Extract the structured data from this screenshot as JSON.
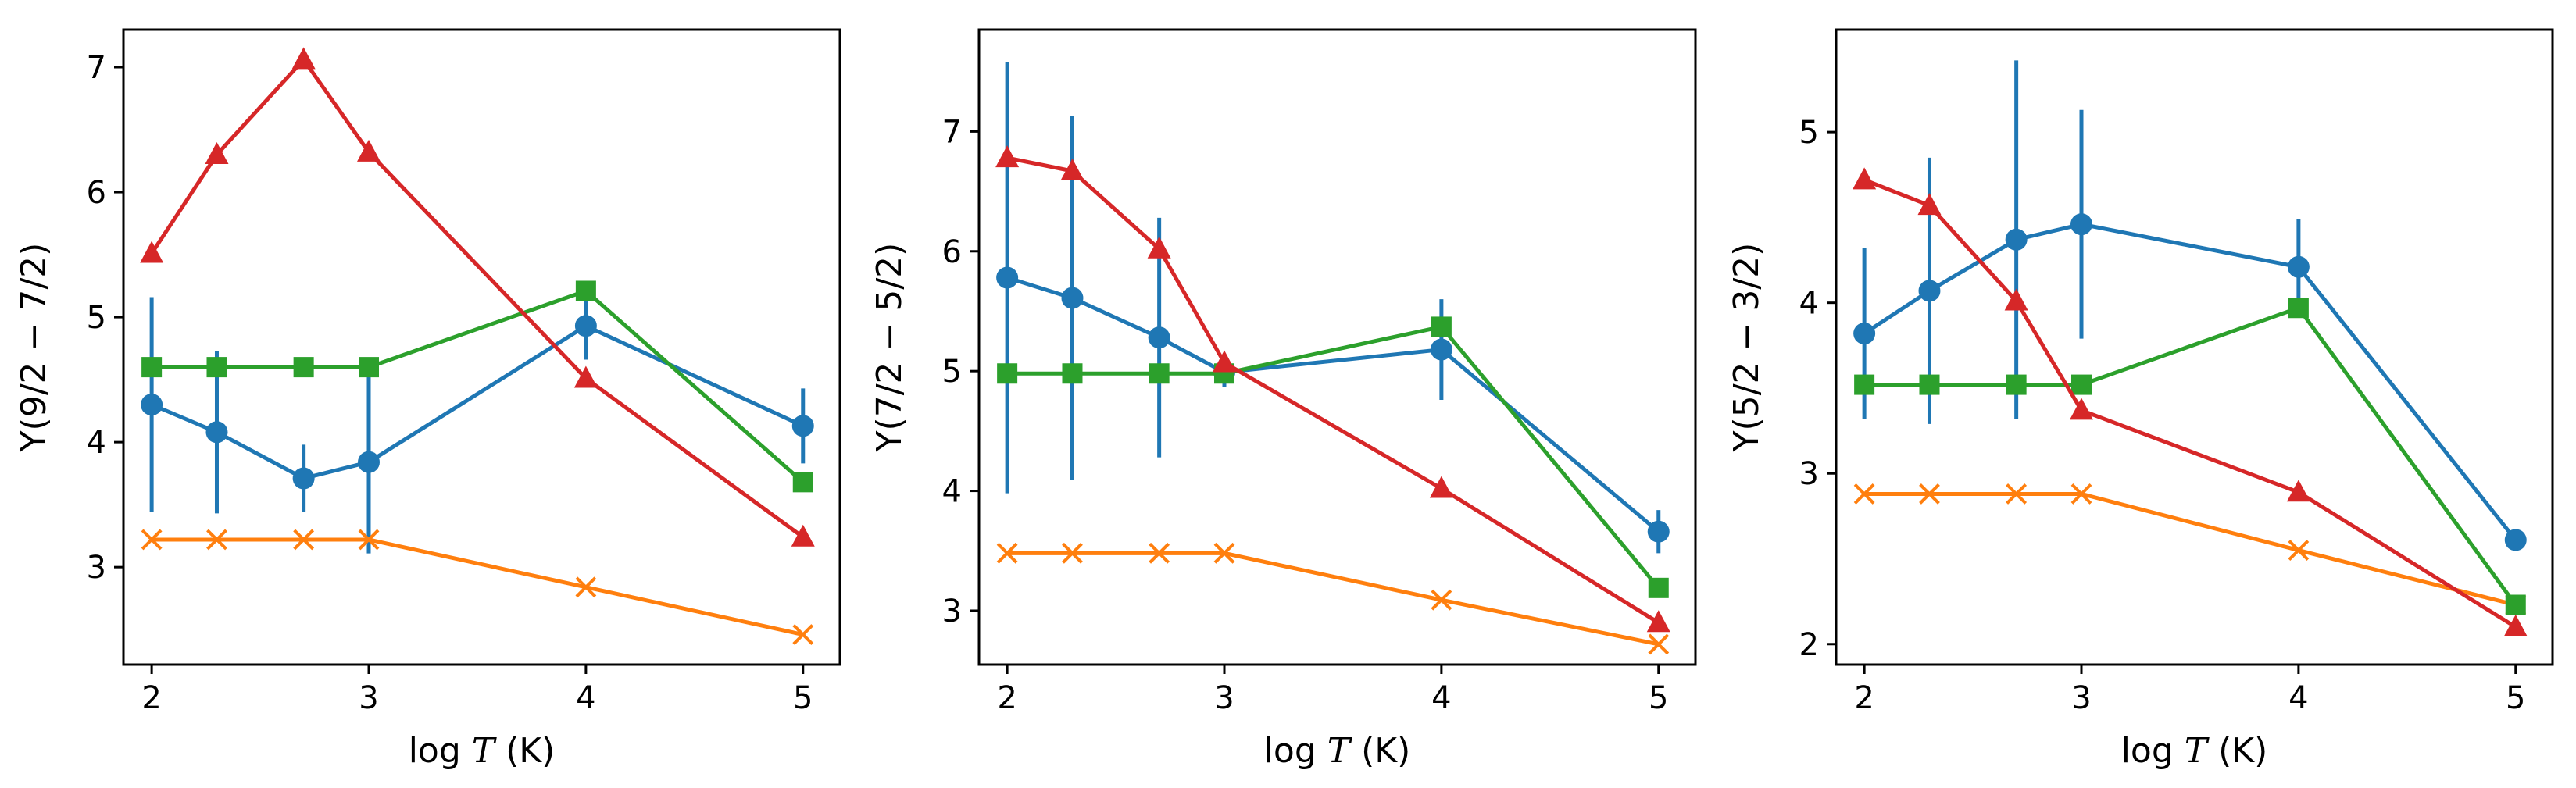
{
  "chart_data": [
    {
      "type": "line",
      "xlabel": "log T (K)",
      "ylabel": "Υ(9/2 − 7/2)",
      "xlim": [
        1.87,
        5.17
      ],
      "ylim": [
        2.22,
        7.3
      ],
      "xticks": [
        2,
        3,
        4,
        5
      ],
      "yticks": [
        3,
        4,
        5,
        6,
        7
      ],
      "series": [
        {
          "name": "blue",
          "color": "#1f77b4",
          "marker": "circle",
          "x": [
            2,
            2.3,
            2.7,
            3,
            4,
            5
          ],
          "y": [
            4.3,
            4.08,
            3.71,
            3.84,
            4.93,
            4.13
          ],
          "yerr": [
            0.86,
            0.65,
            0.27,
            0.73,
            0.27,
            0.3
          ]
        },
        {
          "name": "orange",
          "color": "#ff7f0e",
          "marker": "x",
          "x": [
            2,
            2.3,
            2.7,
            3,
            4,
            5
          ],
          "y": [
            3.22,
            3.22,
            3.22,
            3.22,
            2.84,
            2.46
          ]
        },
        {
          "name": "green",
          "color": "#2ca02c",
          "marker": "square",
          "x": [
            2,
            2.3,
            2.7,
            3,
            4,
            5
          ],
          "y": [
            4.6,
            4.6,
            4.6,
            4.6,
            5.21,
            3.68
          ]
        },
        {
          "name": "red",
          "color": "#d62728",
          "marker": "triangle",
          "x": [
            2,
            2.3,
            2.7,
            3,
            4,
            5
          ],
          "y": [
            5.51,
            6.3,
            7.06,
            6.32,
            4.51,
            3.24
          ]
        }
      ]
    },
    {
      "type": "line",
      "xlabel": "log T (K)",
      "ylabel": "Υ(7/2 − 5/2)",
      "xlim": [
        1.87,
        5.17
      ],
      "ylim": [
        2.55,
        7.85
      ],
      "xticks": [
        2,
        3,
        4,
        5
      ],
      "yticks": [
        3,
        4,
        5,
        6,
        7
      ],
      "series": [
        {
          "name": "blue",
          "color": "#1f77b4",
          "marker": "circle",
          "x": [
            2,
            2.3,
            2.7,
            3,
            4,
            5
          ],
          "y": [
            5.78,
            5.61,
            5.28,
            4.99,
            5.18,
            3.66
          ],
          "yerr": [
            1.8,
            1.52,
            1.0,
            0.12,
            0.42,
            0.18
          ]
        },
        {
          "name": "orange",
          "color": "#ff7f0e",
          "marker": "x",
          "x": [
            2,
            2.3,
            2.7,
            3,
            4,
            5
          ],
          "y": [
            3.48,
            3.48,
            3.48,
            3.48,
            3.09,
            2.72
          ]
        },
        {
          "name": "green",
          "color": "#2ca02c",
          "marker": "square",
          "x": [
            2,
            2.3,
            2.7,
            3,
            4,
            5
          ],
          "y": [
            4.98,
            4.98,
            4.98,
            4.98,
            5.37,
            3.19
          ]
        },
        {
          "name": "red",
          "color": "#d62728",
          "marker": "triangle",
          "x": [
            2,
            2.3,
            2.7,
            3,
            4,
            5
          ],
          "y": [
            6.78,
            6.67,
            6.02,
            5.07,
            4.02,
            2.9
          ]
        }
      ]
    },
    {
      "type": "line",
      "xlabel": "log T (K)",
      "ylabel": "Υ(5/2 − 3/2)",
      "xlim": [
        1.87,
        5.17
      ],
      "ylim": [
        1.88,
        5.6
      ],
      "xticks": [
        2,
        3,
        4,
        5
      ],
      "yticks": [
        2,
        3,
        4,
        5
      ],
      "series": [
        {
          "name": "blue",
          "color": "#1f77b4",
          "marker": "circle",
          "x": [
            2,
            2.3,
            2.7,
            3,
            4,
            5
          ],
          "y": [
            3.82,
            4.07,
            4.37,
            4.46,
            4.21,
            2.61
          ],
          "yerr": [
            0.5,
            0.78,
            1.05,
            0.67,
            0.28,
            0.05
          ]
        },
        {
          "name": "orange",
          "color": "#ff7f0e",
          "marker": "x",
          "x": [
            2,
            2.3,
            2.7,
            3,
            4,
            5
          ],
          "y": [
            2.88,
            2.88,
            2.88,
            2.88,
            2.55,
            2.23
          ]
        },
        {
          "name": "green",
          "color": "#2ca02c",
          "marker": "square",
          "x": [
            2,
            2.3,
            2.7,
            3,
            4,
            5
          ],
          "y": [
            3.52,
            3.52,
            3.52,
            3.52,
            3.97,
            2.23
          ]
        },
        {
          "name": "red",
          "color": "#d62728",
          "marker": "triangle",
          "x": [
            2,
            2.3,
            2.7,
            3,
            4,
            5
          ],
          "y": [
            4.72,
            4.57,
            4.01,
            3.37,
            2.89,
            2.1
          ]
        }
      ]
    }
  ]
}
